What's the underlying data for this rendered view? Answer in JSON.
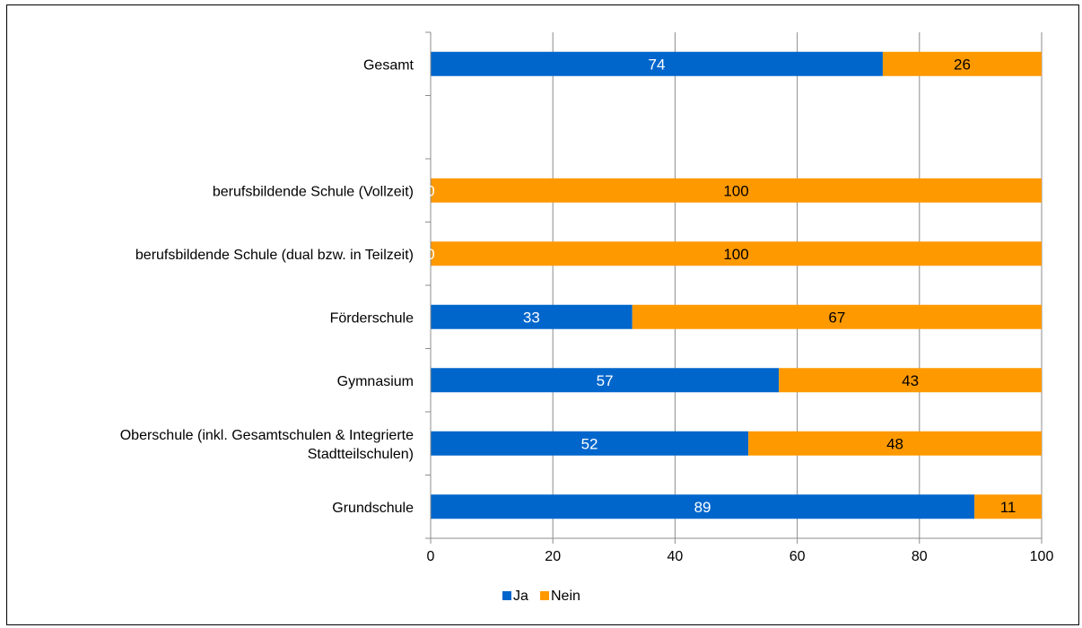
{
  "chart_data": {
    "type": "bar",
    "orientation": "horizontal",
    "stacked": true,
    "categories": [
      "Gesamt",
      "",
      "berufsbildende Schule (Vollzeit)",
      "berufsbildende Schule (dual bzw. in Teilzeit)",
      "Förderschule",
      "Gymnasium",
      "Oberschule (inkl. Gesamtschulen & Integrierte Stadtteilschulen)",
      "Grundschule"
    ],
    "category_lines": [
      [
        "Gesamt"
      ],
      [],
      [
        "berufsbildende Schule (Vollzeit)"
      ],
      [
        "berufsbildende Schule (dual bzw. in Teilzeit)"
      ],
      [
        "Förderschule"
      ],
      [
        "Gymnasium"
      ],
      [
        "Oberschule (inkl. Gesamtschulen & Integrierte",
        "Stadtteilschulen)"
      ],
      [
        "Grundschule"
      ]
    ],
    "series": [
      {
        "name": "Ja",
        "color": "#0066CC",
        "label_color": "#FFFFFF",
        "values": [
          74,
          null,
          0,
          0,
          33,
          57,
          52,
          89
        ]
      },
      {
        "name": "Nein",
        "color": "#FF9900",
        "label_color": "#000000",
        "values": [
          26,
          null,
          100,
          100,
          67,
          43,
          48,
          11
        ]
      }
    ],
    "xlim": [
      0,
      100
    ],
    "xticks": [
      "0",
      "20",
      "40",
      "60",
      "80",
      "100"
    ],
    "xtick_values": [
      0,
      20,
      40,
      60,
      80,
      100
    ],
    "grid": "vertical",
    "legend_position": "bottom",
    "title": "",
    "xlabel": "",
    "ylabel": ""
  }
}
